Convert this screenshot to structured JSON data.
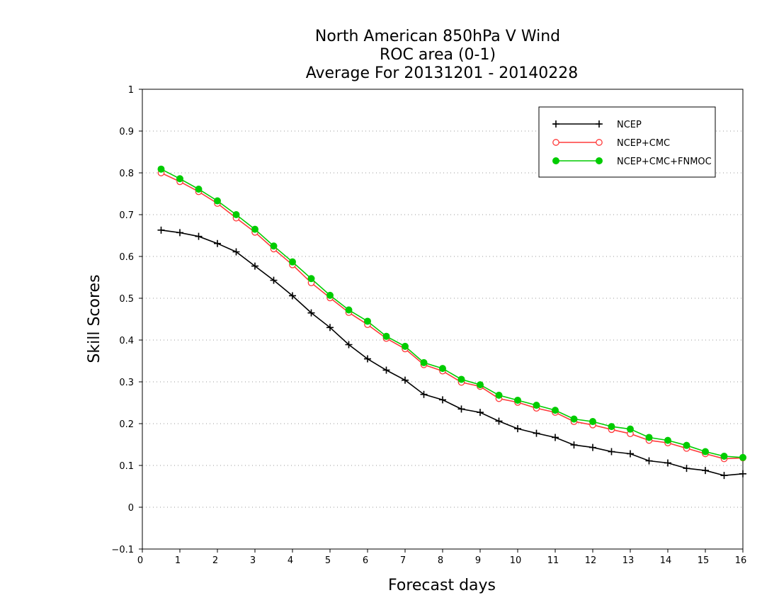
{
  "chart_data": {
    "type": "line",
    "title": [
      "North American 850hPa V Wind",
      "ROC area (0-1)",
      "Average For 20131201 - 20140228"
    ],
    "xlabel": "Forecast days",
    "ylabel": "Skill Scores",
    "xlim": [
      0,
      16
    ],
    "ylim": [
      -0.1,
      1
    ],
    "xticks": [
      "0",
      "1",
      "2",
      "3",
      "4",
      "5",
      "6",
      "7",
      "8",
      "9",
      "10",
      "11",
      "12",
      "13",
      "14",
      "15",
      "16"
    ],
    "yticks": [
      "−0.1",
      "0",
      "0.1",
      "0.2",
      "0.3",
      "0.4",
      "0.5",
      "0.6",
      "0.7",
      "0.8",
      "0.9",
      "1"
    ],
    "grid": "horizontal dotted",
    "legend_position": "top-right",
    "x": [
      0.5,
      1,
      1.5,
      2,
      2.5,
      3,
      3.5,
      4,
      4.5,
      5,
      5.5,
      6,
      6.5,
      7,
      7.5,
      8,
      8.5,
      9,
      9.5,
      10,
      10.5,
      11,
      11.5,
      12,
      12.5,
      13,
      13.5,
      14,
      14.5,
      15,
      15.5,
      16
    ],
    "series": [
      {
        "name": "NCEP",
        "color": "#000000",
        "marker": "plus",
        "values": [
          0.663,
          0.657,
          0.648,
          0.631,
          0.611,
          0.577,
          0.543,
          0.506,
          0.465,
          0.43,
          0.389,
          0.355,
          0.328,
          0.304,
          0.27,
          0.257,
          0.235,
          0.227,
          0.206,
          0.188,
          0.177,
          0.167,
          0.149,
          0.143,
          0.133,
          0.128,
          0.111,
          0.106,
          0.093,
          0.088,
          0.076,
          0.08
        ]
      },
      {
        "name": "NCEP+CMC",
        "color": "#ff3b3b",
        "marker": "open-circle",
        "values": [
          0.8,
          0.779,
          0.755,
          0.727,
          0.692,
          0.658,
          0.618,
          0.58,
          0.537,
          0.501,
          0.466,
          0.437,
          0.404,
          0.379,
          0.341,
          0.326,
          0.299,
          0.289,
          0.26,
          0.251,
          0.237,
          0.227,
          0.205,
          0.197,
          0.186,
          0.176,
          0.16,
          0.154,
          0.141,
          0.128,
          0.116,
          0.118
        ]
      },
      {
        "name": "NCEP+CMC+FNMOC",
        "color": "#00cc00",
        "marker": "filled-circle",
        "values": [
          0.809,
          0.786,
          0.761,
          0.733,
          0.7,
          0.665,
          0.625,
          0.587,
          0.547,
          0.507,
          0.472,
          0.445,
          0.409,
          0.385,
          0.346,
          0.332,
          0.306,
          0.293,
          0.268,
          0.256,
          0.244,
          0.232,
          0.211,
          0.205,
          0.193,
          0.187,
          0.167,
          0.16,
          0.148,
          0.133,
          0.122,
          0.119
        ]
      }
    ]
  }
}
